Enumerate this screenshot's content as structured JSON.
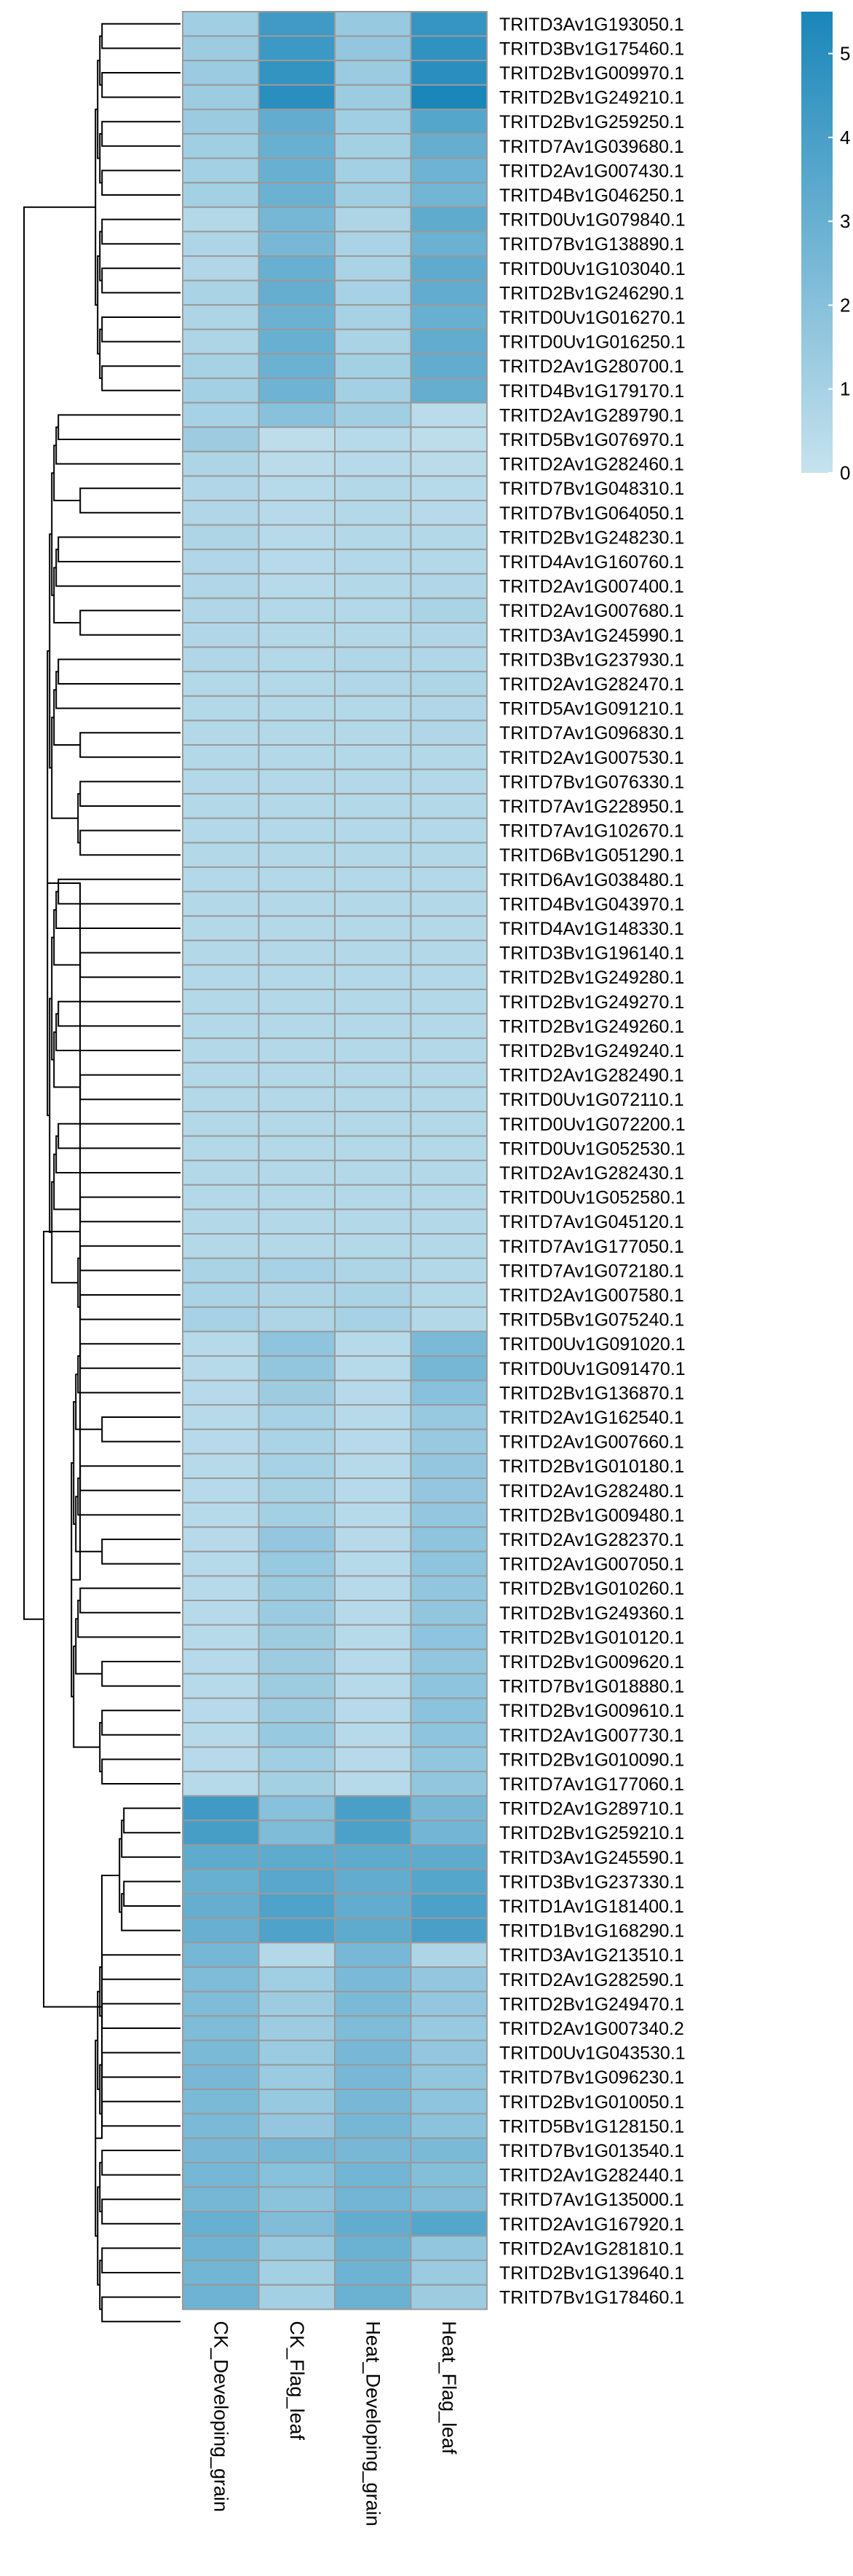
{
  "chart_data": {
    "type": "heatmap",
    "columns": [
      "CK_Developing_grain",
      "CK_Flag_leaf",
      "Heat_Developing_grain",
      "Heat_Flag_leaf"
    ],
    "rows": [
      "TRITD3Av1G193050.1",
      "TRITD3Bv1G175460.1",
      "TRITD2Bv1G009970.1",
      "TRITD2Bv1G249210.1",
      "TRITD2Bv1G259250.1",
      "TRITD7Av1G039680.1",
      "TRITD2Av1G007430.1",
      "TRITD4Bv1G046250.1",
      "TRITD0Uv1G079840.1",
      "TRITD7Bv1G138890.1",
      "TRITD0Uv1G103040.1",
      "TRITD2Bv1G246290.1",
      "TRITD0Uv1G016270.1",
      "TRITD0Uv1G016250.1",
      "TRITD2Av1G280700.1",
      "TRITD4Bv1G179170.1",
      "TRITD2Av1G289790.1",
      "TRITD5Bv1G076970.1",
      "TRITD2Av1G282460.1",
      "TRITD7Bv1G048310.1",
      "TRITD7Bv1G064050.1",
      "TRITD2Bv1G248230.1",
      "TRITD4Av1G160760.1",
      "TRITD2Av1G007400.1",
      "TRITD2Av1G007680.1",
      "TRITD3Av1G245990.1",
      "TRITD3Bv1G237930.1",
      "TRITD2Av1G282470.1",
      "TRITD5Av1G091210.1",
      "TRITD7Av1G096830.1",
      "TRITD2Av1G007530.1",
      "TRITD7Bv1G076330.1",
      "TRITD7Av1G228950.1",
      "TRITD7Av1G102670.1",
      "TRITD6Bv1G051290.1",
      "TRITD6Av1G038480.1",
      "TRITD4Bv1G043970.1",
      "TRITD4Av1G148330.1",
      "TRITD3Bv1G196140.1",
      "TRITD2Bv1G249280.1",
      "TRITD2Bv1G249270.1",
      "TRITD2Bv1G249260.1",
      "TRITD2Bv1G249240.1",
      "TRITD2Av1G282490.1",
      "TRITD0Uv1G072110.1",
      "TRITD0Uv1G072200.1",
      "TRITD0Uv1G052530.1",
      "TRITD2Av1G282430.1",
      "TRITD0Uv1G052580.1",
      "TRITD7Av1G045120.1",
      "TRITD7Av1G177050.1",
      "TRITD7Av1G072180.1",
      "TRITD2Av1G007580.1",
      "TRITD5Bv1G075240.1",
      "TRITD0Uv1G091020.1",
      "TRITD0Uv1G091470.1",
      "TRITD2Bv1G136870.1",
      "TRITD2Av1G162540.1",
      "TRITD2Av1G007660.1",
      "TRITD2Bv1G010180.1",
      "TRITD2Av1G282480.1",
      "TRITD2Bv1G009480.1",
      "TRITD2Av1G282370.1",
      "TRITD2Av1G007050.1",
      "TRITD2Bv1G010260.1",
      "TRITD2Bv1G249360.1",
      "TRITD2Bv1G010120.1",
      "TRITD2Bv1G009620.1",
      "TRITD7Bv1G018880.1",
      "TRITD2Bv1G009610.1",
      "TRITD2Av1G007730.1",
      "TRITD2Bv1G010090.1",
      "TRITD7Av1G177060.1",
      "TRITD2Av1G289710.1",
      "TRITD2Bv1G259210.1",
      "TRITD3Av1G245590.1",
      "TRITD3Bv1G237330.1",
      "TRITD1Av1G181400.1",
      "TRITD1Bv1G168290.1",
      "TRITD3Av1G213510.1",
      "TRITD2Av1G282590.1",
      "TRITD2Bv1G249470.1",
      "TRITD2Av1G007340.2",
      "TRITD0Uv1G043530.1",
      "TRITD7Bv1G096230.1",
      "TRITD2Bv1G010050.1",
      "TRITD5Bv1G128150.1",
      "TRITD7Bv1G013540.1",
      "TRITD2Av1G282440.1",
      "TRITD7Av1G135000.1",
      "TRITD2Av1G167920.1",
      "TRITD2Av1G281810.1",
      "TRITD2Bv1G139640.1",
      "TRITD7Bv1G178460.1"
    ],
    "values": [
      [
        1.2,
        4.3,
        1.5,
        4.6
      ],
      [
        1.3,
        4.4,
        1.6,
        4.8
      ],
      [
        1.4,
        4.7,
        1.4,
        5.0
      ],
      [
        1.3,
        5.0,
        1.3,
        5.5
      ],
      [
        1.4,
        3.2,
        1.2,
        3.6
      ],
      [
        1.2,
        3.0,
        1.1,
        3.1
      ],
      [
        1.1,
        3.0,
        1.1,
        2.8
      ],
      [
        1.1,
        2.9,
        1.2,
        2.7
      ],
      [
        0.6,
        2.6,
        0.8,
        3.3
      ],
      [
        0.8,
        2.5,
        0.9,
        2.9
      ],
      [
        0.7,
        3.0,
        0.9,
        3.3
      ],
      [
        0.9,
        3.1,
        1.0,
        3.2
      ],
      [
        0.8,
        2.9,
        1.0,
        3.0
      ],
      [
        0.8,
        3.0,
        0.9,
        3.2
      ],
      [
        1.0,
        2.9,
        1.1,
        3.2
      ],
      [
        1.1,
        2.8,
        1.1,
        3.1
      ],
      [
        1.0,
        2.0,
        1.2,
        0.4
      ],
      [
        1.3,
        0.3,
        0.5,
        0.3
      ],
      [
        0.8,
        0.4,
        0.5,
        0.4
      ],
      [
        0.7,
        0.5,
        0.6,
        0.5
      ],
      [
        0.7,
        0.5,
        0.6,
        0.5
      ],
      [
        0.8,
        0.5,
        0.6,
        0.6
      ],
      [
        0.7,
        0.5,
        0.6,
        0.6
      ],
      [
        0.7,
        0.5,
        0.6,
        0.7
      ],
      [
        0.7,
        0.6,
        0.6,
        0.9
      ],
      [
        0.7,
        0.6,
        0.6,
        0.7
      ],
      [
        0.7,
        0.6,
        0.7,
        0.7
      ],
      [
        0.6,
        0.6,
        0.7,
        0.8
      ],
      [
        0.6,
        0.6,
        0.6,
        0.7
      ],
      [
        0.6,
        0.6,
        0.6,
        0.7
      ],
      [
        0.6,
        0.6,
        0.6,
        0.6
      ],
      [
        0.6,
        0.6,
        0.6,
        0.6
      ],
      [
        0.6,
        0.6,
        0.6,
        0.6
      ],
      [
        0.6,
        0.6,
        0.6,
        0.6
      ],
      [
        0.6,
        0.6,
        0.6,
        0.6
      ],
      [
        0.6,
        0.6,
        0.6,
        0.6
      ],
      [
        0.6,
        0.6,
        0.6,
        0.6
      ],
      [
        0.6,
        0.6,
        0.6,
        0.6
      ],
      [
        0.6,
        0.6,
        0.6,
        0.6
      ],
      [
        0.6,
        0.6,
        0.6,
        0.6
      ],
      [
        0.6,
        0.6,
        0.6,
        0.6
      ],
      [
        0.6,
        0.6,
        0.6,
        0.6
      ],
      [
        0.6,
        0.6,
        0.6,
        0.6
      ],
      [
        0.6,
        0.6,
        0.6,
        0.6
      ],
      [
        0.6,
        0.6,
        0.6,
        0.6
      ],
      [
        0.6,
        0.6,
        0.6,
        0.6
      ],
      [
        0.6,
        0.6,
        0.6,
        0.6
      ],
      [
        0.6,
        0.6,
        0.6,
        0.6
      ],
      [
        0.6,
        0.6,
        0.6,
        0.6
      ],
      [
        0.6,
        0.6,
        0.6,
        0.6
      ],
      [
        0.6,
        0.6,
        0.6,
        0.6
      ],
      [
        0.9,
        1.0,
        0.8,
        0.6
      ],
      [
        0.9,
        0.8,
        0.9,
        0.6
      ],
      [
        1.0,
        0.8,
        1.0,
        0.6
      ],
      [
        0.5,
        1.8,
        0.5,
        2.4
      ],
      [
        0.5,
        1.7,
        0.5,
        2.6
      ],
      [
        0.5,
        1.3,
        0.5,
        2.0
      ],
      [
        0.5,
        1.0,
        0.5,
        1.5
      ],
      [
        0.5,
        0.9,
        0.5,
        1.5
      ],
      [
        0.5,
        1.0,
        0.5,
        1.6
      ],
      [
        0.5,
        1.0,
        0.5,
        1.6
      ],
      [
        0.5,
        1.1,
        0.5,
        1.6
      ],
      [
        0.5,
        1.6,
        0.5,
        1.8
      ],
      [
        0.5,
        1.5,
        0.5,
        1.8
      ],
      [
        0.5,
        1.4,
        0.5,
        1.7
      ],
      [
        0.5,
        1.4,
        0.5,
        1.7
      ],
      [
        0.5,
        1.3,
        0.5,
        1.8
      ],
      [
        0.5,
        1.3,
        0.5,
        1.7
      ],
      [
        0.5,
        1.3,
        0.5,
        1.8
      ],
      [
        0.5,
        1.3,
        0.5,
        1.9
      ],
      [
        0.5,
        1.5,
        0.5,
        1.8
      ],
      [
        0.5,
        1.2,
        0.5,
        1.7
      ],
      [
        0.5,
        1.1,
        0.5,
        1.7
      ],
      [
        4.3,
        2.0,
        4.0,
        2.5
      ],
      [
        4.1,
        2.3,
        3.9,
        2.7
      ],
      [
        3.3,
        3.3,
        3.3,
        3.3
      ],
      [
        3.0,
        3.5,
        3.2,
        3.6
      ],
      [
        3.1,
        3.8,
        3.2,
        3.9
      ],
      [
        3.0,
        3.8,
        3.3,
        4.0
      ],
      [
        2.6,
        0.6,
        2.5,
        0.8
      ],
      [
        2.3,
        1.2,
        2.4,
        1.6
      ],
      [
        2.3,
        1.3,
        2.4,
        1.6
      ],
      [
        2.3,
        1.3,
        2.3,
        1.5
      ],
      [
        2.4,
        1.4,
        2.5,
        1.6
      ],
      [
        2.5,
        1.4,
        2.5,
        1.7
      ],
      [
        2.4,
        1.5,
        2.5,
        1.8
      ],
      [
        2.4,
        1.6,
        2.6,
        1.9
      ],
      [
        2.5,
        2.5,
        2.5,
        2.4
      ],
      [
        2.6,
        2.0,
        2.7,
        2.1
      ],
      [
        2.6,
        1.9,
        2.7,
        2.2
      ],
      [
        3.0,
        2.2,
        3.2,
        3.6
      ],
      [
        2.8,
        1.5,
        2.9,
        1.7
      ],
      [
        2.7,
        1.1,
        2.8,
        1.4
      ],
      [
        2.8,
        1.1,
        2.9,
        1.3
      ]
    ],
    "legend": {
      "ticks": [
        0,
        1,
        2,
        3,
        4,
        5
      ],
      "min": 0,
      "max": 5.5,
      "low_color": "#c6e2ee",
      "high_color": "#1a86b9"
    },
    "grid_color": "#9a9a9a",
    "tree_color": "#000000",
    "label_color": "#000000"
  }
}
